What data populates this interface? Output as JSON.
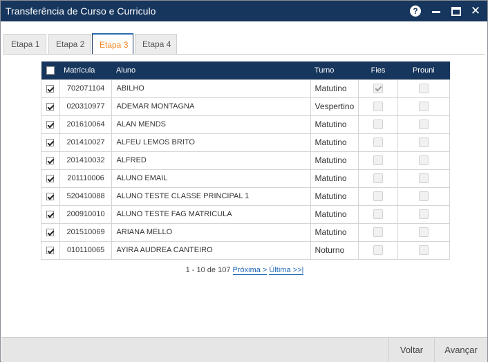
{
  "window": {
    "title": "Transferência de Curso e Curriculo",
    "help_label": "?",
    "close_label": "✕"
  },
  "tabs": [
    {
      "label": "Etapa 1",
      "active": false
    },
    {
      "label": "Etapa 2",
      "active": false
    },
    {
      "label": "Etapa 3",
      "active": true
    },
    {
      "label": "Etapa 4",
      "active": false
    }
  ],
  "table": {
    "headers": {
      "matricula": "Matrícula",
      "aluno": "Aluno",
      "turno": "Turno",
      "fies": "Fies",
      "prouni": "Prouni"
    },
    "select_all_checked": false,
    "rows": [
      {
        "matricula": "702071104",
        "aluno": "ABILHO",
        "turno": "Matutino",
        "selected": true,
        "fies": true,
        "prouni": false
      },
      {
        "matricula": "020310977",
        "aluno": "ADEMAR MONTAGNA",
        "turno": "Vespertino",
        "selected": true,
        "fies": false,
        "prouni": false
      },
      {
        "matricula": "201610064",
        "aluno": "ALAN MENDS",
        "turno": "Matutino",
        "selected": true,
        "fies": false,
        "prouni": false
      },
      {
        "matricula": "201410027",
        "aluno": "ALFEU LEMOS BRITO",
        "turno": "Matutino",
        "selected": true,
        "fies": false,
        "prouni": false
      },
      {
        "matricula": "201410032",
        "aluno": "ALFRED",
        "turno": "Matutino",
        "selected": true,
        "fies": false,
        "prouni": false
      },
      {
        "matricula": "201110006",
        "aluno": "ALUNO EMAIL",
        "turno": "Matutino",
        "selected": true,
        "fies": false,
        "prouni": false
      },
      {
        "matricula": "520410088",
        "aluno": "ALUNO TESTE CLASSE PRINCIPAL 1",
        "turno": "Matutino",
        "selected": true,
        "fies": false,
        "prouni": false
      },
      {
        "matricula": "200910010",
        "aluno": "ALUNO TESTE FAG MATRICULA",
        "turno": "Matutino",
        "selected": true,
        "fies": false,
        "prouni": false
      },
      {
        "matricula": "201510069",
        "aluno": "ARIANA MELLO",
        "turno": "Matutino",
        "selected": true,
        "fies": false,
        "prouni": false
      },
      {
        "matricula": "010110065",
        "aluno": "AYIRA AUDREA CANTEIRO",
        "turno": "Noturno",
        "selected": true,
        "fies": false,
        "prouni": false
      }
    ]
  },
  "pager": {
    "summary": "1 - 10 de 107",
    "next_label": "Próxima >",
    "last_label": "Última >>|"
  },
  "footer": {
    "back_label": "Voltar",
    "next_label": "Avançar"
  },
  "colors": {
    "titlebar": "#17365d",
    "active_tab_text": "#f0861e",
    "link": "#1c64b5"
  }
}
